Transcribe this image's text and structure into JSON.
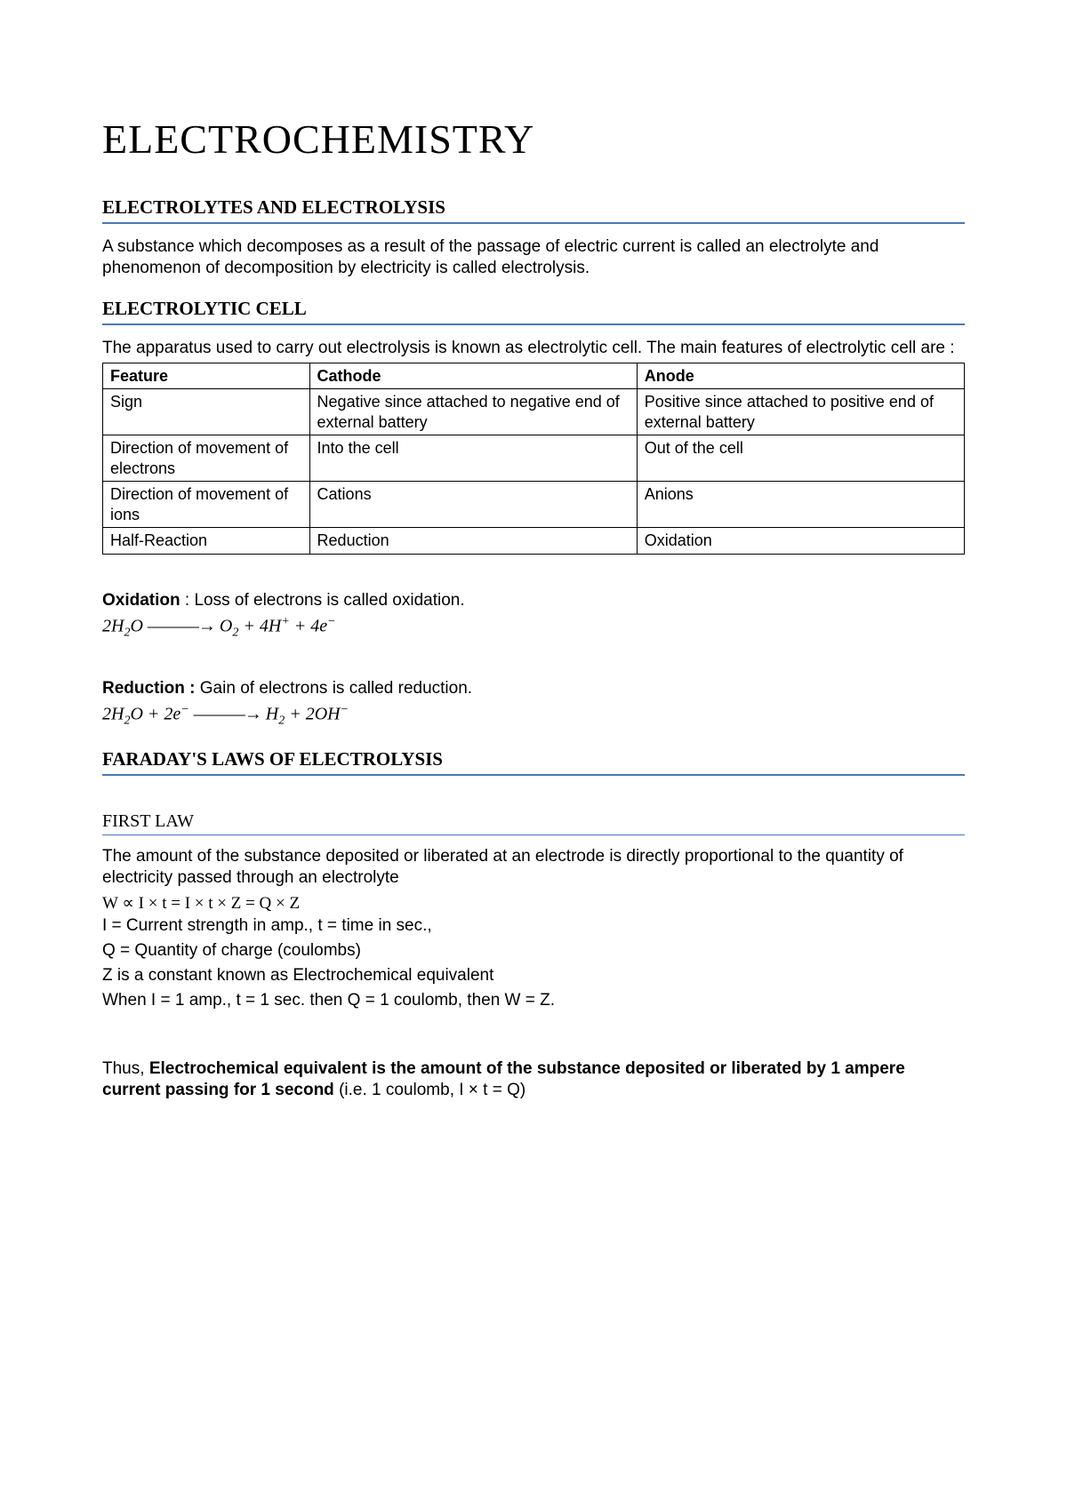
{
  "title": "ELECTROCHEMISTRY",
  "sec1": {
    "heading": "ELECTROLYTES AND ELECTROLYSIS",
    "body": "A substance which decomposes as a result of the passage of electric current is called an electrolyte and phenomenon of decomposition by electricity is called electrolysis."
  },
  "sec2": {
    "heading": "ELECTROLYTIC CELL",
    "intro": "The apparatus used to carry out electrolysis is known as electrolytic cell. The main features of electrolytic cell are :"
  },
  "table": {
    "columns": [
      "Feature",
      "Cathode",
      "Anode"
    ],
    "col_widths": [
      "24%",
      "38%",
      "38%"
    ],
    "rows": [
      [
        "Sign",
        "Negative since attached to negative end of external battery",
        "Positive since attached to positive end of external battery"
      ],
      [
        "Direction of movement of electrons",
        "Into the cell",
        "Out of the cell"
      ],
      [
        "Direction of movement of ions",
        "Cations",
        "Anions"
      ],
      [
        "Half-Reaction",
        "Reduction",
        "Oxidation"
      ]
    ],
    "border_color": "#000000",
    "font_size": 18
  },
  "oxidation": {
    "label": "Oxidation",
    "text": " : Loss of electrons is called oxidation.",
    "formula_html": "2<i>H</i><span class='sub'>2</span><i>O</i> <span class='arrow'>———→</span> <i>O</i><span class='sub'>2</span> + 4<i>H</i><span class='sup'>+</span> + 4<i>e</i><span class='sup'>−</span>"
  },
  "reduction": {
    "label": "Reduction :",
    "text": " Gain of electrons is called reduction.",
    "formula_html": "2<i>H</i><span class='sub'>2</span><i>O</i> + 2<i>e</i><span class='sup'>−</span> <span class='arrow'>———→</span> <i>H</i><span class='sub'>2</span> + 2<i>OH</i><span class='sup'>−</span>"
  },
  "sec3": {
    "heading": "FARADAY'S LAWS OF ELECTROLYSIS"
  },
  "firstlaw": {
    "heading": "FIRST LAW",
    "body": "The amount of the substance deposited or liberated at an electrode is directly proportional to the quantity of electricity passed through an electrolyte",
    "eq": "W ∝ I × t = I × t × Z = Q × Z",
    "l1": "I = Current strength in amp., t = time in sec.,",
    "l2": "Q = Quantity of charge (coulombs)",
    "l3": "Z is a constant known as Electrochemical equivalent",
    "l4": "When I = 1 amp., t = 1 sec. then Q = 1 coulomb, then W = Z."
  },
  "conclusion": {
    "pre": "Thus, ",
    "bold": "Electrochemical equivalent is the amount of the substance deposited or liberated by 1 ampere current passing for 1 second",
    "post": " (i.e. 1 coulomb, I × t = Q)"
  },
  "colors": {
    "heading_rule": "#4a7ab5",
    "text": "#000000",
    "background": "#ffffff"
  }
}
